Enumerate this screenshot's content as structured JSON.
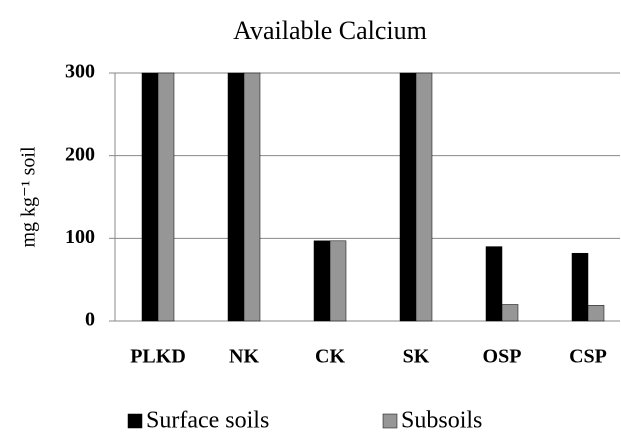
{
  "chart_data": {
    "type": "bar",
    "title": "Available Calcium",
    "y_label": "mg kg⁻¹ soil",
    "categories": [
      "PLKD",
      "NK",
      "CK",
      "SK",
      "OSP",
      "CSP"
    ],
    "series": [
      {
        "name": "Surface soils",
        "color": "#000000",
        "values": [
          300,
          300,
          97,
          300,
          90,
          82
        ]
      },
      {
        "name": "Subsoils",
        "color": "#969696",
        "values": [
          300,
          300,
          97,
          300,
          20,
          19
        ]
      }
    ],
    "ylim": [
      0,
      300
    ],
    "yticks": [
      0,
      100,
      200,
      300
    ],
    "grid": true,
    "legend": "bottom"
  }
}
